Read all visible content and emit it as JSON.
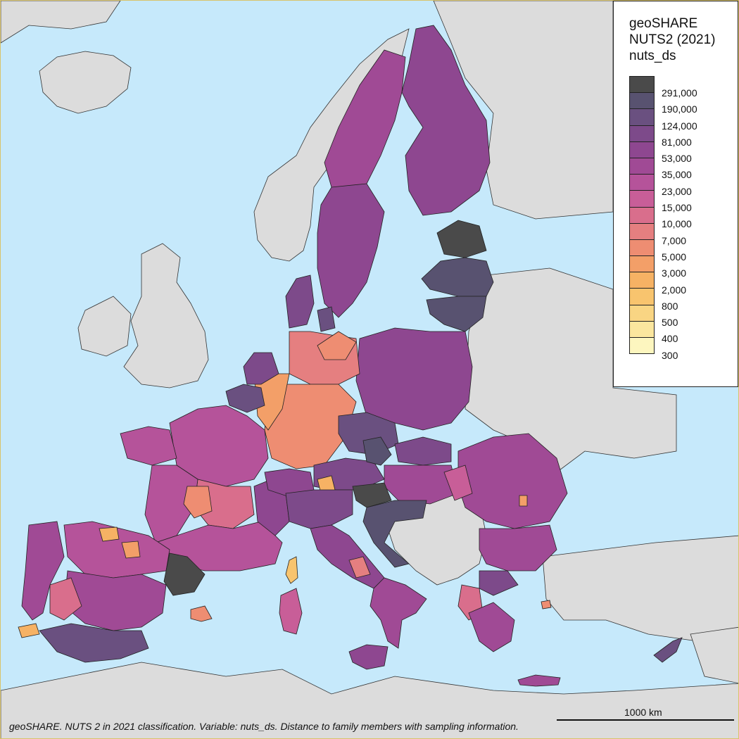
{
  "legend": {
    "title_line1": "geoSHARE",
    "title_line2": "NUTS2 (2021)",
    "title_line3": "nuts_ds",
    "classes": [
      {
        "label": "291,000",
        "color": "#4a4a4a"
      },
      {
        "label": "190,000",
        "color": "#585270"
      },
      {
        "label": "124,000",
        "color": "#6a5080"
      },
      {
        "label": "81,000",
        "color": "#7d4a8a"
      },
      {
        "label": "53,000",
        "color": "#8e4790"
      },
      {
        "label": "35,000",
        "color": "#a04a95"
      },
      {
        "label": "23,000",
        "color": "#b5539a"
      },
      {
        "label": "15,000",
        "color": "#c85e98"
      },
      {
        "label": "10,000",
        "color": "#d96e8c"
      },
      {
        "label": "7,000",
        "color": "#e57f80"
      },
      {
        "label": "5,000",
        "color": "#ee8d72"
      },
      {
        "label": "3,000",
        "color": "#f39f68"
      },
      {
        "label": "2,000",
        "color": "#f6b264"
      },
      {
        "label": "800",
        "color": "#f8c46e"
      },
      {
        "label": "500",
        "color": "#f9d583"
      },
      {
        "label": "400",
        "color": "#fbe69e"
      },
      {
        "label": "300",
        "color": "#fdf6bf"
      }
    ]
  },
  "scale": {
    "label": "1000 km"
  },
  "caption": "geoSHARE. NUTS 2 in 2021 classification. Variable: nuts_ds. Distance to family members with sampling information.",
  "colors": {
    "sea": "#c6e9fb",
    "no_data": "#dcdcdc",
    "border": "#222222"
  }
}
